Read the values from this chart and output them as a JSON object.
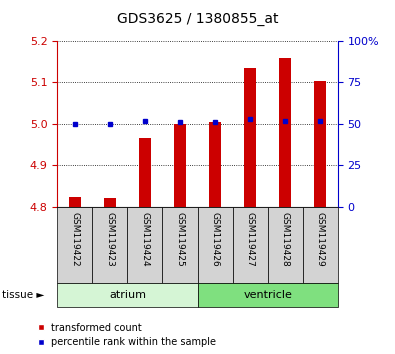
{
  "title": "GDS3625 / 1380855_at",
  "samples": [
    "GSM119422",
    "GSM119423",
    "GSM119424",
    "GSM119425",
    "GSM119426",
    "GSM119427",
    "GSM119428",
    "GSM119429"
  ],
  "transformed_count": [
    4.825,
    4.822,
    4.965,
    4.999,
    5.005,
    5.135,
    5.158,
    5.103
  ],
  "percentile_rank": [
    50,
    50,
    52,
    51,
    51,
    53,
    52,
    52
  ],
  "base_value": 4.8,
  "ylim": [
    4.8,
    5.2
  ],
  "ylim_right": [
    0,
    100
  ],
  "yticks_left": [
    4.8,
    4.9,
    5.0,
    5.1,
    5.2
  ],
  "yticks_right": [
    0,
    25,
    50,
    75,
    100
  ],
  "tissue_groups": [
    {
      "label": "atrium",
      "start": 0,
      "end": 4,
      "color": "#d5f5d5"
    },
    {
      "label": "ventricle",
      "start": 4,
      "end": 8,
      "color": "#7fe07f"
    }
  ],
  "bar_color": "#cc0000",
  "marker_color": "#0000cc",
  "left_axis_color": "#cc0000",
  "right_axis_color": "#0000cc",
  "sample_bg": "#d3d3d3",
  "title_fontsize": 10,
  "tick_fontsize": 8,
  "sample_fontsize": 6.5,
  "tissue_fontsize": 8,
  "legend_fontsize": 7
}
